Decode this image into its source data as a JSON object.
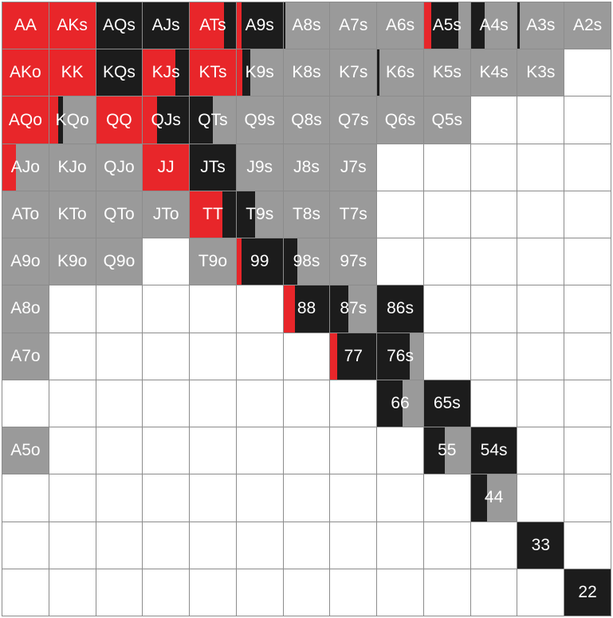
{
  "colors": {
    "raise": "#e8262a",
    "call": "#1c1c1c",
    "fold": "#9a9a9a",
    "empty": "#ffffff"
  },
  "ranks": [
    "A",
    "K",
    "Q",
    "J",
    "T",
    "9",
    "8",
    "7",
    "6",
    "5",
    "4",
    "3",
    "2"
  ],
  "rows": [
    [
      {
        "label": "AA",
        "mix": [
          [
            "raise",
            1
          ]
        ]
      },
      {
        "label": "AKs",
        "mix": [
          [
            "raise",
            1
          ]
        ]
      },
      {
        "label": "AQs",
        "mix": [
          [
            "call",
            1
          ]
        ]
      },
      {
        "label": "AJs",
        "mix": [
          [
            "call",
            1
          ]
        ]
      },
      {
        "label": "ATs",
        "mix": [
          [
            "raise",
            0.75
          ],
          [
            "call",
            0.25
          ]
        ]
      },
      {
        "label": "A9s",
        "mix": [
          [
            "raise",
            0.1
          ],
          [
            "call",
            0.9
          ]
        ]
      },
      {
        "label": "A8s",
        "mix": [
          [
            "call",
            0.05
          ],
          [
            "fold",
            0.95
          ]
        ]
      },
      {
        "label": "A7s",
        "mix": [
          [
            "fold",
            1
          ]
        ]
      },
      {
        "label": "A6s",
        "mix": [
          [
            "fold",
            1
          ]
        ]
      },
      {
        "label": "A5s",
        "mix": [
          [
            "raise",
            0.15
          ],
          [
            "call",
            0.6
          ],
          [
            "fold",
            0.25
          ]
        ]
      },
      {
        "label": "A4s",
        "mix": [
          [
            "call",
            0.3
          ],
          [
            "fold",
            0.7
          ]
        ]
      },
      {
        "label": "A3s",
        "mix": [
          [
            "call",
            0.05
          ],
          [
            "fold",
            0.95
          ]
        ]
      },
      {
        "label": "A2s",
        "mix": [
          [
            "fold",
            1
          ]
        ]
      }
    ],
    [
      {
        "label": "AKo",
        "mix": [
          [
            "raise",
            1
          ]
        ]
      },
      {
        "label": "KK",
        "mix": [
          [
            "raise",
            1
          ]
        ]
      },
      {
        "label": "KQs",
        "mix": [
          [
            "call",
            1
          ]
        ]
      },
      {
        "label": "KJs",
        "mix": [
          [
            "raise",
            0.7
          ],
          [
            "call",
            0.3
          ]
        ]
      },
      {
        "label": "KTs",
        "mix": [
          [
            "raise",
            1
          ]
        ]
      },
      {
        "label": "K9s",
        "mix": [
          [
            "raise",
            0.12
          ],
          [
            "call",
            0.18
          ],
          [
            "fold",
            0.7
          ]
        ]
      },
      {
        "label": "K8s",
        "mix": [
          [
            "fold",
            1
          ]
        ]
      },
      {
        "label": "K7s",
        "mix": [
          [
            "fold",
            1
          ]
        ]
      },
      {
        "label": "K6s",
        "mix": [
          [
            "call",
            0.05
          ],
          [
            "fold",
            0.95
          ]
        ]
      },
      {
        "label": "K5s",
        "mix": [
          [
            "fold",
            1
          ]
        ]
      },
      {
        "label": "K4s",
        "mix": [
          [
            "fold",
            1
          ]
        ]
      },
      {
        "label": "K3s",
        "mix": [
          [
            "fold",
            1
          ]
        ]
      },
      {
        "label": "",
        "mix": []
      }
    ],
    [
      {
        "label": "AQo",
        "mix": [
          [
            "raise",
            1
          ]
        ]
      },
      {
        "label": "KQo",
        "mix": [
          [
            "raise",
            0.2
          ],
          [
            "call",
            0.1
          ],
          [
            "fold",
            0.7
          ]
        ]
      },
      {
        "label": "QQ",
        "mix": [
          [
            "raise",
            1
          ]
        ]
      },
      {
        "label": "QJs",
        "mix": [
          [
            "raise",
            0.3
          ],
          [
            "call",
            0.7
          ]
        ]
      },
      {
        "label": "QTs",
        "mix": [
          [
            "call",
            0.5
          ],
          [
            "fold",
            0.5
          ]
        ]
      },
      {
        "label": "Q9s",
        "mix": [
          [
            "fold",
            1
          ]
        ]
      },
      {
        "label": "Q8s",
        "mix": [
          [
            "fold",
            1
          ]
        ]
      },
      {
        "label": "Q7s",
        "mix": [
          [
            "fold",
            1
          ]
        ]
      },
      {
        "label": "Q6s",
        "mix": [
          [
            "fold",
            1
          ]
        ]
      },
      {
        "label": "Q5s",
        "mix": [
          [
            "fold",
            1
          ]
        ]
      },
      {
        "label": "",
        "mix": []
      },
      {
        "label": "",
        "mix": []
      },
      {
        "label": "",
        "mix": []
      }
    ],
    [
      {
        "label": "AJo",
        "mix": [
          [
            "raise",
            0.3
          ],
          [
            "fold",
            0.7
          ]
        ]
      },
      {
        "label": "KJo",
        "mix": [
          [
            "fold",
            1
          ]
        ]
      },
      {
        "label": "QJo",
        "mix": [
          [
            "fold",
            1
          ]
        ]
      },
      {
        "label": "JJ",
        "mix": [
          [
            "raise",
            1
          ]
        ]
      },
      {
        "label": "JTs",
        "mix": [
          [
            "call",
            1
          ]
        ]
      },
      {
        "label": "J9s",
        "mix": [
          [
            "fold",
            1
          ]
        ]
      },
      {
        "label": "J8s",
        "mix": [
          [
            "fold",
            1
          ]
        ]
      },
      {
        "label": "J7s",
        "mix": [
          [
            "fold",
            1
          ]
        ]
      },
      {
        "label": "",
        "mix": []
      },
      {
        "label": "",
        "mix": []
      },
      {
        "label": "",
        "mix": []
      },
      {
        "label": "",
        "mix": []
      },
      {
        "label": "",
        "mix": []
      }
    ],
    [
      {
        "label": "ATo",
        "mix": [
          [
            "fold",
            1
          ]
        ]
      },
      {
        "label": "KTo",
        "mix": [
          [
            "fold",
            1
          ]
        ]
      },
      {
        "label": "QTo",
        "mix": [
          [
            "fold",
            1
          ]
        ]
      },
      {
        "label": "JTo",
        "mix": [
          [
            "fold",
            1
          ]
        ]
      },
      {
        "label": "TT",
        "mix": [
          [
            "raise",
            0.7
          ],
          [
            "call",
            0.3
          ]
        ]
      },
      {
        "label": "T9s",
        "mix": [
          [
            "call",
            0.4
          ],
          [
            "fold",
            0.6
          ]
        ]
      },
      {
        "label": "T8s",
        "mix": [
          [
            "fold",
            1
          ]
        ]
      },
      {
        "label": "T7s",
        "mix": [
          [
            "fold",
            1
          ]
        ]
      },
      {
        "label": "",
        "mix": []
      },
      {
        "label": "",
        "mix": []
      },
      {
        "label": "",
        "mix": []
      },
      {
        "label": "",
        "mix": []
      },
      {
        "label": "",
        "mix": []
      }
    ],
    [
      {
        "label": "A9o",
        "mix": [
          [
            "fold",
            1
          ]
        ]
      },
      {
        "label": "K9o",
        "mix": [
          [
            "fold",
            1
          ]
        ]
      },
      {
        "label": "Q9o",
        "mix": [
          [
            "fold",
            1
          ]
        ]
      },
      {
        "label": "",
        "mix": []
      },
      {
        "label": "T9o",
        "mix": [
          [
            "fold",
            1
          ]
        ]
      },
      {
        "label": "99",
        "mix": [
          [
            "raise",
            0.1
          ],
          [
            "call",
            0.9
          ]
        ]
      },
      {
        "label": "98s",
        "mix": [
          [
            "call",
            0.3
          ],
          [
            "fold",
            0.7
          ]
        ]
      },
      {
        "label": "97s",
        "mix": [
          [
            "fold",
            1
          ]
        ]
      },
      {
        "label": "",
        "mix": []
      },
      {
        "label": "",
        "mix": []
      },
      {
        "label": "",
        "mix": []
      },
      {
        "label": "",
        "mix": []
      },
      {
        "label": "",
        "mix": []
      }
    ],
    [
      {
        "label": "A8o",
        "mix": [
          [
            "fold",
            1
          ]
        ]
      },
      {
        "label": "",
        "mix": []
      },
      {
        "label": "",
        "mix": []
      },
      {
        "label": "",
        "mix": []
      },
      {
        "label": "",
        "mix": []
      },
      {
        "label": "",
        "mix": []
      },
      {
        "label": "88",
        "mix": [
          [
            "raise",
            0.25
          ],
          [
            "call",
            0.75
          ]
        ]
      },
      {
        "label": "87s",
        "mix": [
          [
            "call",
            0.4
          ],
          [
            "fold",
            0.6
          ]
        ]
      },
      {
        "label": "86s",
        "mix": [
          [
            "call",
            1
          ]
        ]
      },
      {
        "label": "",
        "mix": []
      },
      {
        "label": "",
        "mix": []
      },
      {
        "label": "",
        "mix": []
      },
      {
        "label": "",
        "mix": []
      }
    ],
    [
      {
        "label": "A7o",
        "mix": [
          [
            "fold",
            1
          ]
        ]
      },
      {
        "label": "",
        "mix": []
      },
      {
        "label": "",
        "mix": []
      },
      {
        "label": "",
        "mix": []
      },
      {
        "label": "",
        "mix": []
      },
      {
        "label": "",
        "mix": []
      },
      {
        "label": "",
        "mix": []
      },
      {
        "label": "77",
        "mix": [
          [
            "raise",
            0.15
          ],
          [
            "call",
            0.85
          ]
        ]
      },
      {
        "label": "76s",
        "mix": [
          [
            "call",
            0.7
          ],
          [
            "fold",
            0.3
          ]
        ]
      },
      {
        "label": "",
        "mix": []
      },
      {
        "label": "",
        "mix": []
      },
      {
        "label": "",
        "mix": []
      },
      {
        "label": "",
        "mix": []
      }
    ],
    [
      {
        "label": "",
        "mix": []
      },
      {
        "label": "",
        "mix": []
      },
      {
        "label": "",
        "mix": []
      },
      {
        "label": "",
        "mix": []
      },
      {
        "label": "",
        "mix": []
      },
      {
        "label": "",
        "mix": []
      },
      {
        "label": "",
        "mix": []
      },
      {
        "label": "",
        "mix": []
      },
      {
        "label": "66",
        "mix": [
          [
            "call",
            0.55
          ],
          [
            "fold",
            0.45
          ]
        ]
      },
      {
        "label": "65s",
        "mix": [
          [
            "call",
            1
          ]
        ]
      },
      {
        "label": "",
        "mix": []
      },
      {
        "label": "",
        "mix": []
      },
      {
        "label": "",
        "mix": []
      }
    ],
    [
      {
        "label": "A5o",
        "mix": [
          [
            "fold",
            1
          ]
        ]
      },
      {
        "label": "",
        "mix": []
      },
      {
        "label": "",
        "mix": []
      },
      {
        "label": "",
        "mix": []
      },
      {
        "label": "",
        "mix": []
      },
      {
        "label": "",
        "mix": []
      },
      {
        "label": "",
        "mix": []
      },
      {
        "label": "",
        "mix": []
      },
      {
        "label": "",
        "mix": []
      },
      {
        "label": "55",
        "mix": [
          [
            "call",
            0.45
          ],
          [
            "fold",
            0.55
          ]
        ]
      },
      {
        "label": "54s",
        "mix": [
          [
            "call",
            1
          ]
        ]
      },
      {
        "label": "",
        "mix": []
      },
      {
        "label": "",
        "mix": []
      }
    ],
    [
      {
        "label": "",
        "mix": []
      },
      {
        "label": "",
        "mix": []
      },
      {
        "label": "",
        "mix": []
      },
      {
        "label": "",
        "mix": []
      },
      {
        "label": "",
        "mix": []
      },
      {
        "label": "",
        "mix": []
      },
      {
        "label": "",
        "mix": []
      },
      {
        "label": "",
        "mix": []
      },
      {
        "label": "",
        "mix": []
      },
      {
        "label": "",
        "mix": []
      },
      {
        "label": "44",
        "mix": [
          [
            "call",
            0.35
          ],
          [
            "fold",
            0.65
          ]
        ]
      },
      {
        "label": "",
        "mix": []
      },
      {
        "label": "",
        "mix": []
      }
    ],
    [
      {
        "label": "",
        "mix": []
      },
      {
        "label": "",
        "mix": []
      },
      {
        "label": "",
        "mix": []
      },
      {
        "label": "",
        "mix": []
      },
      {
        "label": "",
        "mix": []
      },
      {
        "label": "",
        "mix": []
      },
      {
        "label": "",
        "mix": []
      },
      {
        "label": "",
        "mix": []
      },
      {
        "label": "",
        "mix": []
      },
      {
        "label": "",
        "mix": []
      },
      {
        "label": "",
        "mix": []
      },
      {
        "label": "33",
        "mix": [
          [
            "call",
            1
          ]
        ]
      },
      {
        "label": "",
        "mix": []
      }
    ],
    [
      {
        "label": "",
        "mix": []
      },
      {
        "label": "",
        "mix": []
      },
      {
        "label": "",
        "mix": []
      },
      {
        "label": "",
        "mix": []
      },
      {
        "label": "",
        "mix": []
      },
      {
        "label": "",
        "mix": []
      },
      {
        "label": "",
        "mix": []
      },
      {
        "label": "",
        "mix": []
      },
      {
        "label": "",
        "mix": []
      },
      {
        "label": "",
        "mix": []
      },
      {
        "label": "",
        "mix": []
      },
      {
        "label": "",
        "mix": []
      },
      {
        "label": "22",
        "mix": [
          [
            "call",
            1
          ]
        ]
      }
    ]
  ]
}
